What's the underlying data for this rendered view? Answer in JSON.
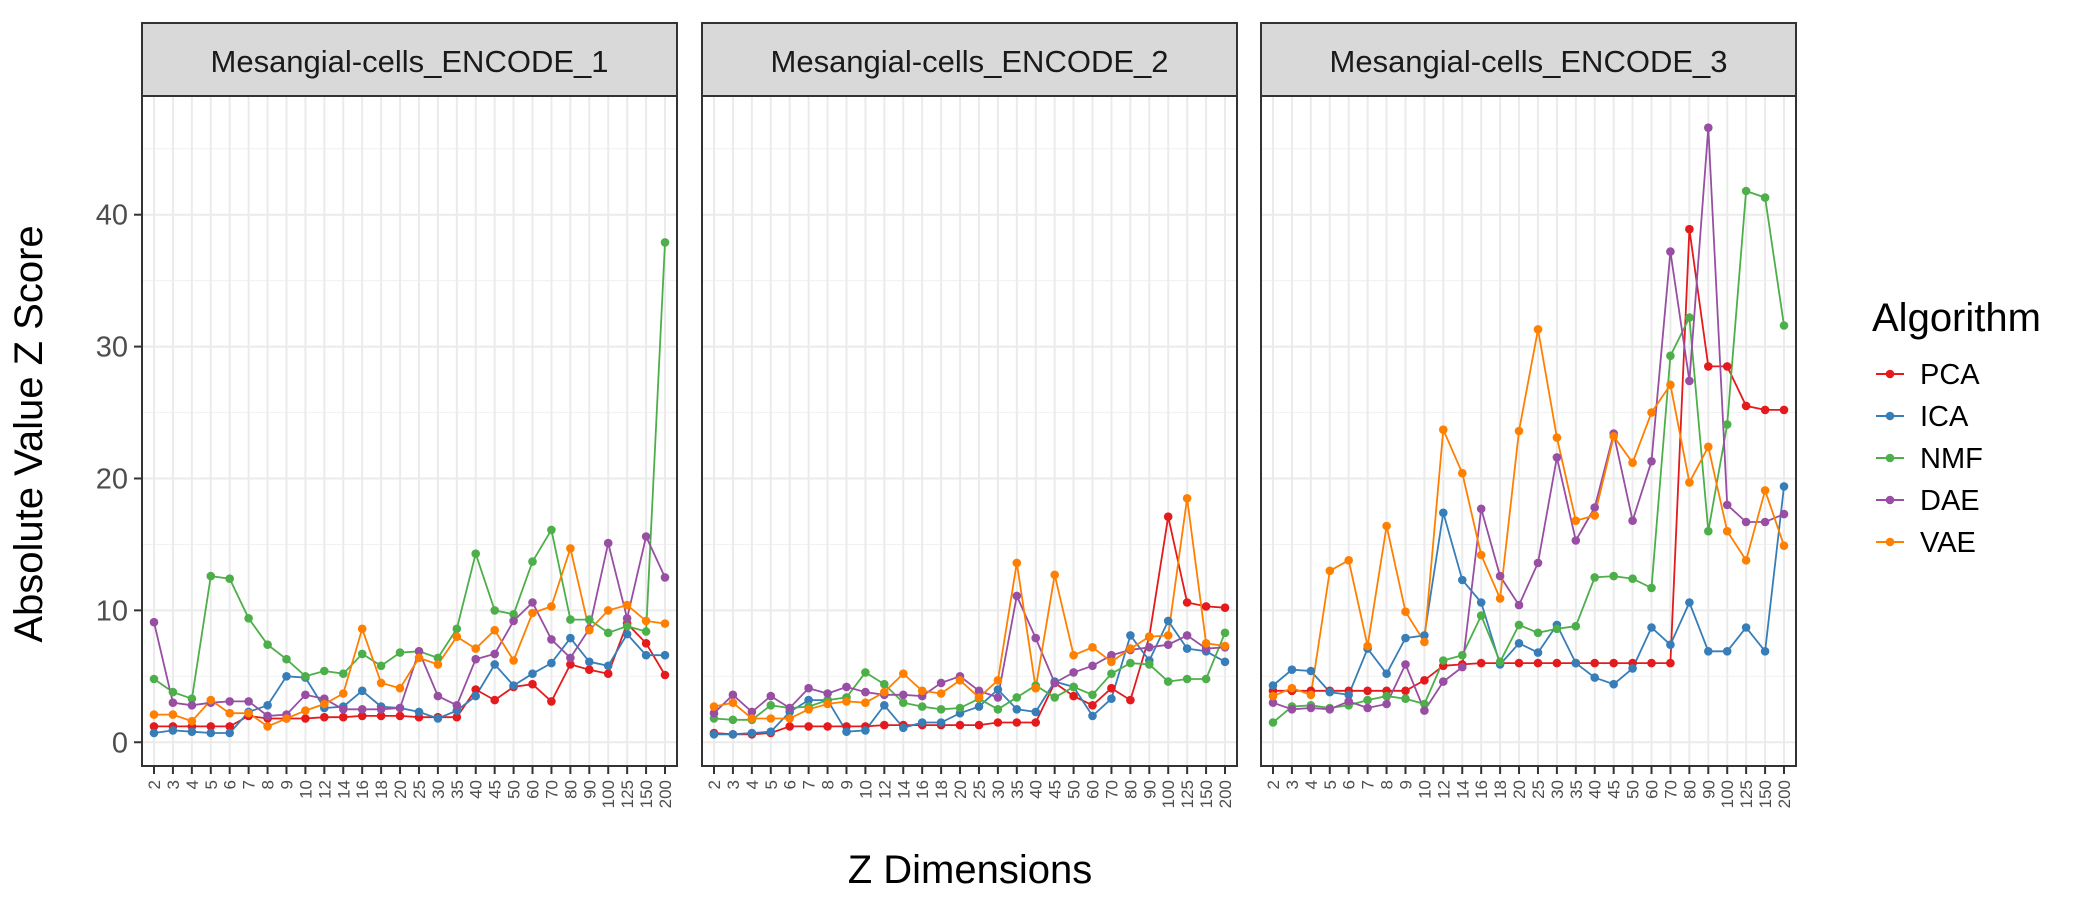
{
  "chart_data": {
    "type": "line",
    "xlabel": "Z Dimensions",
    "ylabel": "Absolute Value Z Score",
    "ylim": [
      -1.8,
      49
    ],
    "yticks": [
      0,
      10,
      20,
      30,
      40
    ],
    "categories": [
      "2",
      "3",
      "4",
      "5",
      "6",
      "7",
      "8",
      "9",
      "10",
      "12",
      "14",
      "16",
      "18",
      "20",
      "25",
      "30",
      "35",
      "40",
      "45",
      "50",
      "60",
      "70",
      "80",
      "90",
      "100",
      "125",
      "150",
      "200"
    ],
    "legend": {
      "title": "Algorithm",
      "position": "right"
    },
    "colors": {
      "PCA": "#e41a1c",
      "ICA": "#377eb8",
      "NMF": "#4daf4a",
      "DAE": "#984ea3",
      "VAE": "#ff7f00"
    },
    "grid": true,
    "facets": [
      {
        "title": "Mesangial-cells_ENCODE_1",
        "series": [
          {
            "name": "PCA",
            "values": [
              1.2,
              1.2,
              1.2,
              1.2,
              1.2,
              2.0,
              1.8,
              1.8,
              1.8,
              1.9,
              1.9,
              2.0,
              2.0,
              2.0,
              1.9,
              1.9,
              1.9,
              4.0,
              3.2,
              4.2,
              4.4,
              3.1,
              5.9,
              5.5,
              5.2,
              9.0,
              7.5,
              5.1
            ]
          },
          {
            "name": "ICA",
            "values": [
              0.7,
              0.9,
              0.8,
              0.7,
              0.7,
              2.3,
              2.8,
              5.0,
              4.9,
              2.6,
              2.7,
              3.9,
              2.7,
              2.6,
              2.3,
              1.8,
              2.4,
              3.5,
              5.9,
              4.3,
              5.2,
              6.0,
              7.9,
              6.1,
              5.8,
              8.2,
              6.6,
              6.6
            ]
          },
          {
            "name": "NMF",
            "values": [
              4.8,
              3.8,
              3.3,
              12.6,
              12.4,
              9.4,
              7.4,
              6.3,
              5.0,
              5.4,
              5.2,
              6.7,
              5.8,
              6.8,
              6.9,
              6.4,
              8.6,
              14.3,
              10.0,
              9.7,
              13.7,
              16.1,
              9.3,
              9.3,
              8.3,
              8.8,
              8.4,
              37.9
            ]
          },
          {
            "name": "DAE",
            "values": [
              9.1,
              3.0,
              2.8,
              3.0,
              3.1,
              3.1,
              2.0,
              2.1,
              3.6,
              3.3,
              2.5,
              2.5,
              2.5,
              2.6,
              6.9,
              3.5,
              2.8,
              6.3,
              6.7,
              9.2,
              10.6,
              7.8,
              6.4,
              8.6,
              15.1,
              9.4,
              15.6,
              12.5
            ]
          },
          {
            "name": "VAE",
            "values": [
              2.1,
              2.1,
              1.6,
              3.2,
              2.2,
              2.2,
              1.2,
              1.8,
              2.4,
              2.9,
              3.7,
              8.6,
              4.5,
              4.1,
              6.4,
              5.9,
              8.0,
              7.1,
              8.5,
              6.2,
              9.8,
              10.3,
              14.7,
              8.5,
              10.0,
              10.4,
              9.2,
              9.0
            ]
          }
        ]
      },
      {
        "title": "Mesangial-cells_ENCODE_2",
        "series": [
          {
            "name": "PCA",
            "values": [
              0.7,
              0.6,
              0.6,
              0.7,
              1.2,
              1.2,
              1.2,
              1.2,
              1.2,
              1.3,
              1.3,
              1.3,
              1.3,
              1.3,
              1.3,
              1.5,
              1.5,
              1.5,
              4.5,
              3.5,
              2.8,
              4.1,
              3.2,
              8.0,
              17.1,
              10.6,
              10.3,
              10.2
            ]
          },
          {
            "name": "ICA",
            "values": [
              0.6,
              0.6,
              0.7,
              0.8,
              2.3,
              3.2,
              3.2,
              0.8,
              0.9,
              2.8,
              1.1,
              1.5,
              1.5,
              2.2,
              2.7,
              4.0,
              2.5,
              2.3,
              4.6,
              4.2,
              2.0,
              3.3,
              8.1,
              6.2,
              9.2,
              7.1,
              6.9,
              6.1
            ]
          },
          {
            "name": "NMF",
            "values": [
              1.8,
              1.7,
              1.7,
              2.8,
              2.6,
              2.7,
              3.2,
              3.4,
              5.3,
              4.4,
              3.0,
              2.7,
              2.5,
              2.6,
              3.3,
              2.5,
              3.4,
              4.3,
              3.4,
              4.2,
              3.6,
              5.2,
              6.0,
              5.9,
              4.6,
              4.8,
              4.8,
              8.3
            ]
          },
          {
            "name": "DAE",
            "values": [
              2.2,
              3.6,
              2.3,
              3.5,
              2.6,
              4.1,
              3.7,
              4.2,
              3.8,
              3.6,
              3.6,
              3.5,
              4.5,
              5.0,
              3.9,
              3.4,
              11.1,
              7.9,
              4.5,
              5.3,
              5.8,
              6.6,
              7.0,
              7.2,
              7.4,
              8.1,
              7.1,
              7.2
            ]
          },
          {
            "name": "VAE",
            "values": [
              2.7,
              3.0,
              1.8,
              1.8,
              1.8,
              2.5,
              2.9,
              3.1,
              3.0,
              3.8,
              5.2,
              3.9,
              3.7,
              4.7,
              3.4,
              4.7,
              13.6,
              4.1,
              12.7,
              6.6,
              7.2,
              6.1,
              7.1,
              8.0,
              8.1,
              18.5,
              7.5,
              7.3
            ]
          }
        ]
      },
      {
        "title": "Mesangial-cells_ENCODE_3",
        "series": [
          {
            "name": "PCA",
            "values": [
              3.9,
              3.9,
              3.9,
              3.9,
              3.9,
              3.9,
              3.9,
              3.9,
              4.7,
              5.8,
              5.9,
              6.0,
              6.0,
              6.0,
              6.0,
              6.0,
              6.0,
              6.0,
              6.0,
              6.0,
              6.0,
              6.0,
              38.9,
              28.5,
              28.5,
              25.5,
              25.2,
              25.2
            ]
          },
          {
            "name": "ICA",
            "values": [
              4.3,
              5.5,
              5.4,
              3.8,
              3.6,
              7.1,
              5.2,
              7.9,
              8.1,
              17.4,
              12.3,
              10.6,
              5.9,
              7.5,
              6.8,
              8.9,
              6.0,
              4.9,
              4.4,
              5.6,
              8.7,
              7.4,
              10.6,
              6.9,
              6.9,
              8.7,
              6.9,
              19.4
            ]
          },
          {
            "name": "NMF",
            "values": [
              1.5,
              2.7,
              2.8,
              2.6,
              2.8,
              3.2,
              3.5,
              3.3,
              2.9,
              6.2,
              6.6,
              9.6,
              6.1,
              8.9,
              8.3,
              8.6,
              8.8,
              12.5,
              12.6,
              12.4,
              11.7,
              29.3,
              32.2,
              16.0,
              24.1,
              41.8,
              41.3,
              31.6
            ]
          },
          {
            "name": "DAE",
            "values": [
              3.0,
              2.5,
              2.6,
              2.5,
              3.1,
              2.6,
              2.9,
              5.9,
              2.4,
              4.6,
              5.7,
              17.7,
              12.6,
              10.4,
              13.6,
              21.6,
              15.3,
              17.8,
              23.4,
              16.8,
              21.3,
              37.2,
              27.4,
              46.6,
              18.0,
              16.7,
              16.7,
              17.3
            ]
          },
          {
            "name": "VAE",
            "values": [
              3.5,
              4.1,
              3.6,
              13.0,
              13.8,
              7.3,
              16.4,
              9.9,
              7.6,
              23.7,
              20.4,
              14.2,
              10.9,
              23.6,
              31.3,
              23.1,
              16.8,
              17.2,
              23.2,
              21.2,
              25.0,
              27.1,
              19.7,
              22.4,
              16.0,
              13.8,
              19.1,
              14.9
            ]
          }
        ]
      }
    ]
  }
}
